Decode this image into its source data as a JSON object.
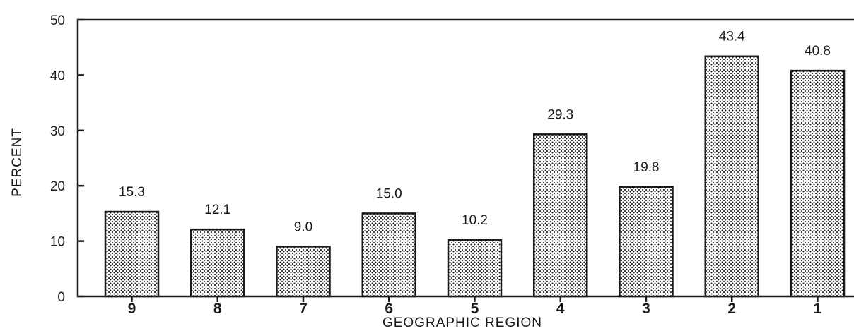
{
  "chart_data": {
    "type": "bar",
    "categories": [
      "9",
      "8",
      "7",
      "6",
      "5",
      "4",
      "3",
      "2",
      "1"
    ],
    "values": [
      15.3,
      12.1,
      9.0,
      15.0,
      10.2,
      29.3,
      19.8,
      43.4,
      40.8
    ],
    "value_labels": [
      "15.3",
      "12.1",
      "9.0",
      "15.0",
      "10.2",
      "29.3",
      "19.8",
      "43.4",
      "40.8"
    ],
    "xlabel": "GEOGRAPHIC REGION",
    "ylabel": "PERCENT",
    "ylim": [
      0,
      50
    ],
    "yticks": [
      "0",
      "10",
      "20",
      "30",
      "40",
      "50"
    ],
    "grid": false,
    "bar_pattern": "dotted",
    "colors": {
      "ink": "#1a1a1a",
      "fill_dots": "#1a1a1a",
      "background": "#ffffff"
    }
  }
}
